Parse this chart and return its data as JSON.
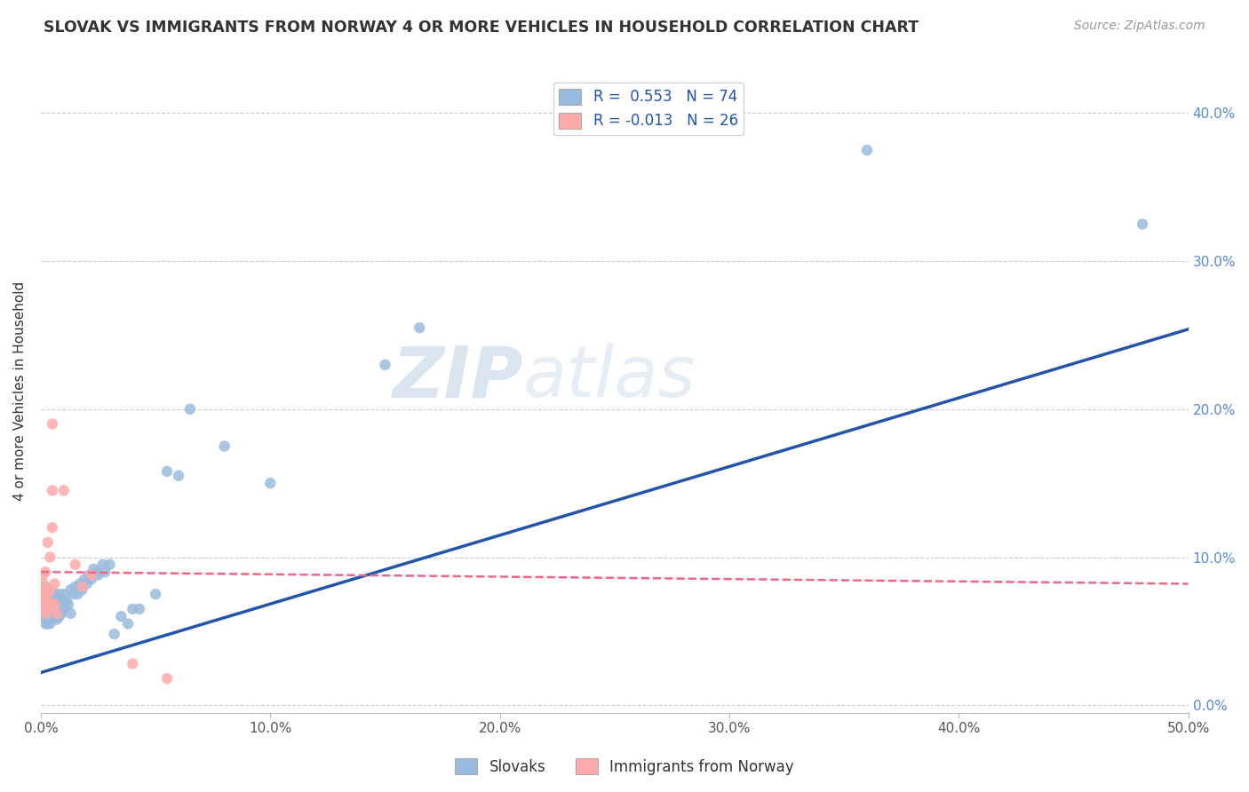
{
  "title": "SLOVAK VS IMMIGRANTS FROM NORWAY 4 OR MORE VEHICLES IN HOUSEHOLD CORRELATION CHART",
  "source": "Source: ZipAtlas.com",
  "ylabel": "4 or more Vehicles in Household",
  "xlim": [
    0.0,
    0.5
  ],
  "ylim": [
    -0.005,
    0.43
  ],
  "xticks": [
    0.0,
    0.1,
    0.2,
    0.3,
    0.4,
    0.5
  ],
  "xticklabels": [
    "0.0%",
    "10.0%",
    "20.0%",
    "30.0%",
    "40.0%",
    "50.0%"
  ],
  "yticks": [
    0.0,
    0.1,
    0.2,
    0.3,
    0.4
  ],
  "blue_R": 0.553,
  "blue_N": 74,
  "pink_R": -0.013,
  "pink_N": 26,
  "blue_color": "#99BBDD",
  "pink_color": "#FFAAAA",
  "blue_line_color": "#2255AA",
  "pink_line_color": "#EE6688",
  "legend_label_blue": "Slovaks",
  "legend_label_pink": "Immigrants from Norway",
  "watermark_zip": "ZIP",
  "watermark_atlas": "atlas",
  "blue_scatter_x": [
    0.001,
    0.001,
    0.001,
    0.001,
    0.002,
    0.002,
    0.002,
    0.002,
    0.002,
    0.002,
    0.003,
    0.003,
    0.003,
    0.003,
    0.003,
    0.003,
    0.003,
    0.004,
    0.004,
    0.004,
    0.004,
    0.004,
    0.005,
    0.005,
    0.005,
    0.005,
    0.006,
    0.006,
    0.006,
    0.006,
    0.007,
    0.007,
    0.007,
    0.008,
    0.008,
    0.008,
    0.009,
    0.009,
    0.01,
    0.01,
    0.011,
    0.012,
    0.013,
    0.013,
    0.014,
    0.015,
    0.016,
    0.017,
    0.018,
    0.019,
    0.02,
    0.021,
    0.022,
    0.023,
    0.024,
    0.025,
    0.027,
    0.028,
    0.03,
    0.032,
    0.035,
    0.038,
    0.04,
    0.043,
    0.05,
    0.055,
    0.06,
    0.065,
    0.08,
    0.1,
    0.15,
    0.165,
    0.36,
    0.48
  ],
  "blue_scatter_y": [
    0.06,
    0.065,
    0.07,
    0.075,
    0.055,
    0.06,
    0.065,
    0.07,
    0.075,
    0.08,
    0.055,
    0.058,
    0.062,
    0.065,
    0.068,
    0.072,
    0.078,
    0.055,
    0.06,
    0.065,
    0.07,
    0.075,
    0.058,
    0.062,
    0.068,
    0.075,
    0.06,
    0.065,
    0.07,
    0.075,
    0.058,
    0.065,
    0.072,
    0.06,
    0.068,
    0.075,
    0.062,
    0.07,
    0.065,
    0.075,
    0.07,
    0.068,
    0.062,
    0.078,
    0.075,
    0.08,
    0.075,
    0.082,
    0.078,
    0.085,
    0.082,
    0.088,
    0.085,
    0.092,
    0.09,
    0.088,
    0.095,
    0.09,
    0.095,
    0.048,
    0.06,
    0.055,
    0.065,
    0.065,
    0.075,
    0.158,
    0.155,
    0.2,
    0.175,
    0.15,
    0.23,
    0.255,
    0.375,
    0.325
  ],
  "pink_scatter_x": [
    0.001,
    0.001,
    0.001,
    0.001,
    0.002,
    0.002,
    0.002,
    0.002,
    0.003,
    0.003,
    0.003,
    0.004,
    0.004,
    0.004,
    0.005,
    0.005,
    0.005,
    0.006,
    0.006,
    0.007,
    0.01,
    0.015,
    0.018,
    0.022,
    0.04,
    0.055
  ],
  "pink_scatter_y": [
    0.068,
    0.075,
    0.082,
    0.088,
    0.062,
    0.07,
    0.078,
    0.09,
    0.065,
    0.075,
    0.11,
    0.068,
    0.078,
    0.1,
    0.12,
    0.145,
    0.19,
    0.068,
    0.082,
    0.062,
    0.145,
    0.095,
    0.08,
    0.088,
    0.028,
    0.018
  ],
  "blue_line_x0": 0.0,
  "blue_line_y0": 0.022,
  "blue_line_x1": 0.5,
  "blue_line_y1": 0.254,
  "pink_line_x0": 0.0,
  "pink_line_y0": 0.09,
  "pink_line_x1": 0.5,
  "pink_line_y1": 0.082
}
